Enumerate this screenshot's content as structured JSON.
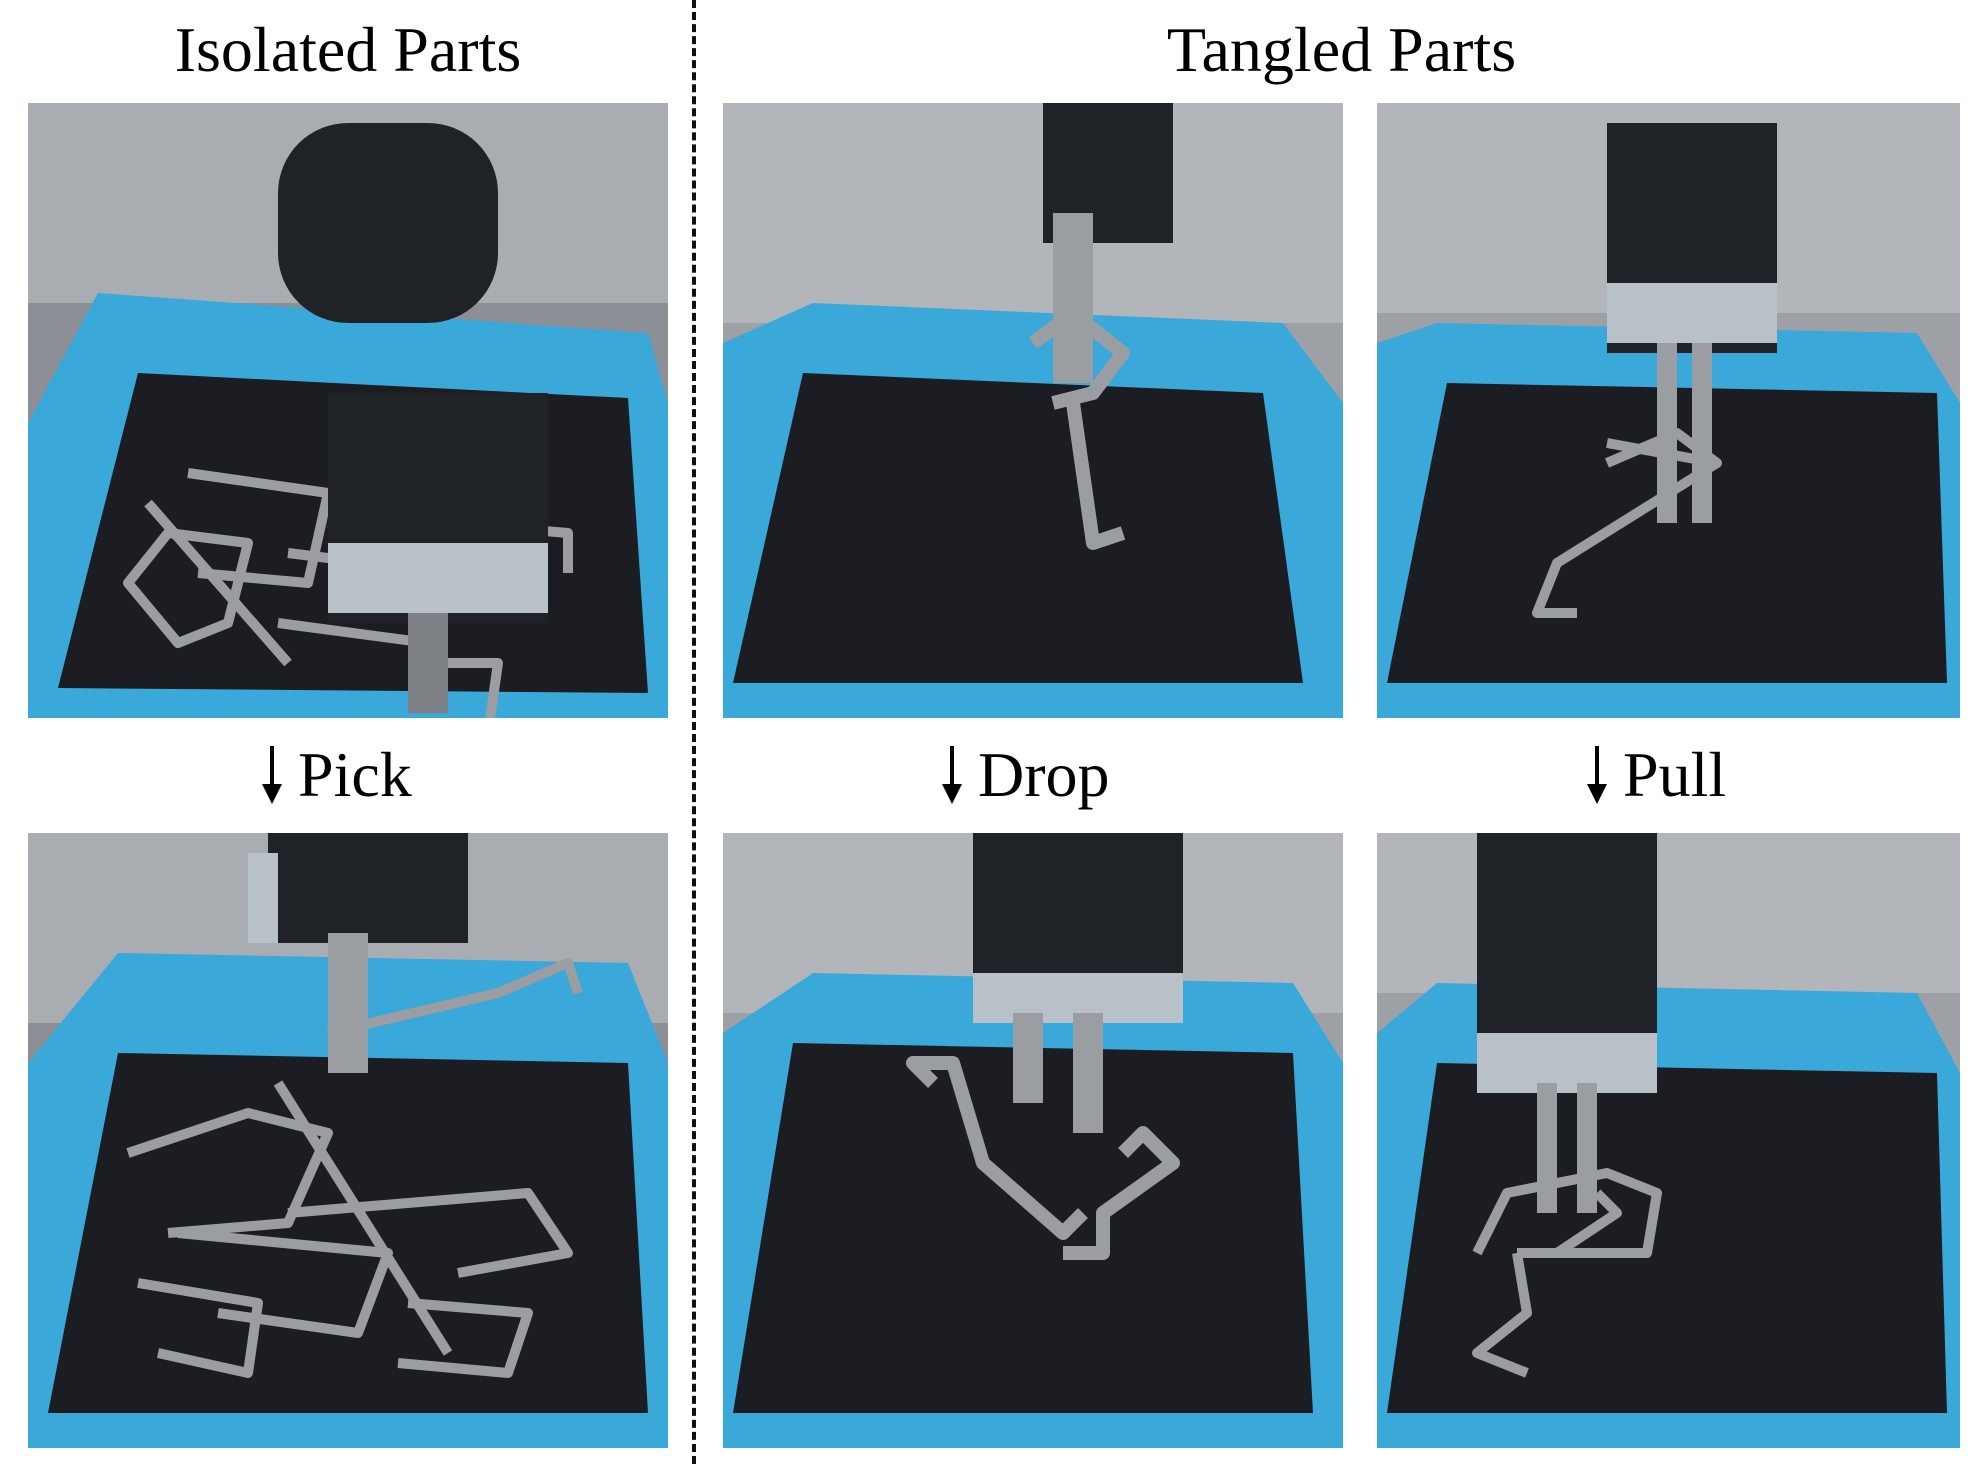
{
  "headings": {
    "left": "Isolated Parts",
    "right": "Tangled Parts"
  },
  "actions": {
    "pick": "Pick",
    "drop": "Drop",
    "pull": "Pull"
  },
  "colors": {
    "bin": "#3aa8d8",
    "bin_floor": "#1b1d22",
    "parts": "#9a9da1",
    "gripper": "#1f2226"
  }
}
